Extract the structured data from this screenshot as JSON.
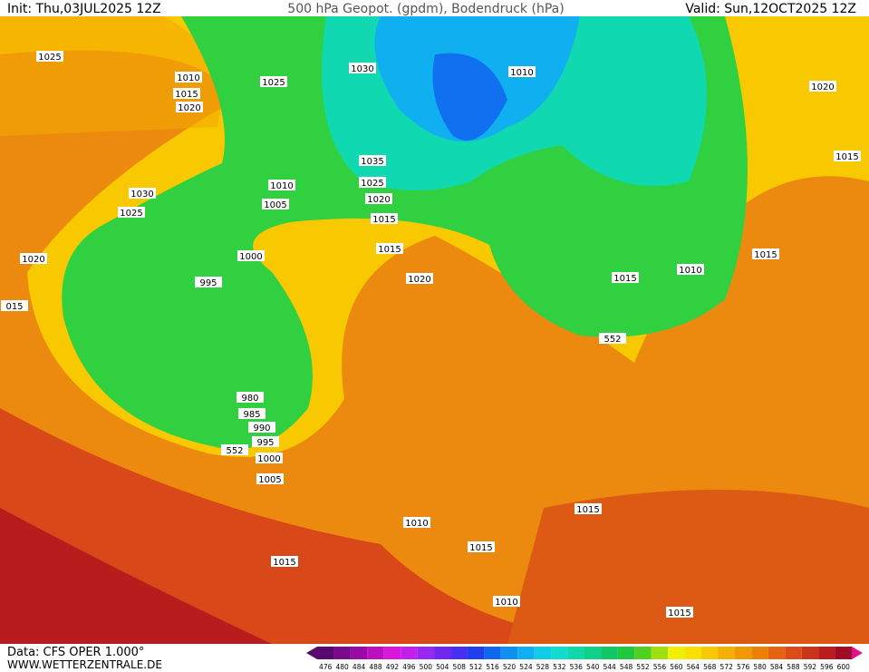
{
  "header": {
    "init": "Init: Thu,03JUL2025 12Z",
    "title": "500 hPa Geopot. (gpdm), Bodendruck (hPa)",
    "valid": "Valid: Sun,12OCT2025 12Z"
  },
  "footer": {
    "data": "Data: CFS OPER 1.000°",
    "site": "WWW.WETTERZENTRALE.DE"
  },
  "colorbar": {
    "levels": [
      476,
      480,
      484,
      488,
      492,
      496,
      500,
      504,
      508,
      512,
      516,
      520,
      524,
      528,
      532,
      536,
      540,
      544,
      548,
      552,
      556,
      560,
      564,
      568,
      572,
      576,
      580,
      584,
      588,
      592,
      596,
      600
    ],
    "colors": [
      "#5a0a6e",
      "#7a0a8a",
      "#9a0aa6",
      "#ba10c0",
      "#d818d8",
      "#c020e8",
      "#9828f0",
      "#7028f0",
      "#4830f0",
      "#2040f0",
      "#1068f0",
      "#1090f0",
      "#10b0f0",
      "#10cce8",
      "#10dcd0",
      "#10d8a8",
      "#10d088",
      "#10c868",
      "#20c840",
      "#50d020",
      "#a0e010",
      "#f0f000",
      "#f8e000",
      "#f8c800",
      "#f4b000",
      "#f09800",
      "#ec8000",
      "#e46414",
      "#dc4c18",
      "#cc3418",
      "#b81c1c",
      "#a00c28"
    ]
  },
  "isobars": [
    "1025",
    "1010",
    "1015",
    "1020",
    "1025",
    "1030",
    "1010",
    "1020",
    "1015",
    "1035",
    "1025",
    "1020",
    "1010",
    "1005",
    "1015",
    "1030",
    "1025",
    "1015",
    "1020",
    "1000",
    "1015",
    "1010",
    "1020",
    "1015",
    "995",
    "015",
    "552",
    "980",
    "985",
    "990",
    "995",
    "552",
    "1000",
    "1005",
    "1015",
    "1010",
    "1015",
    "1015",
    "1010",
    "1015"
  ]
}
